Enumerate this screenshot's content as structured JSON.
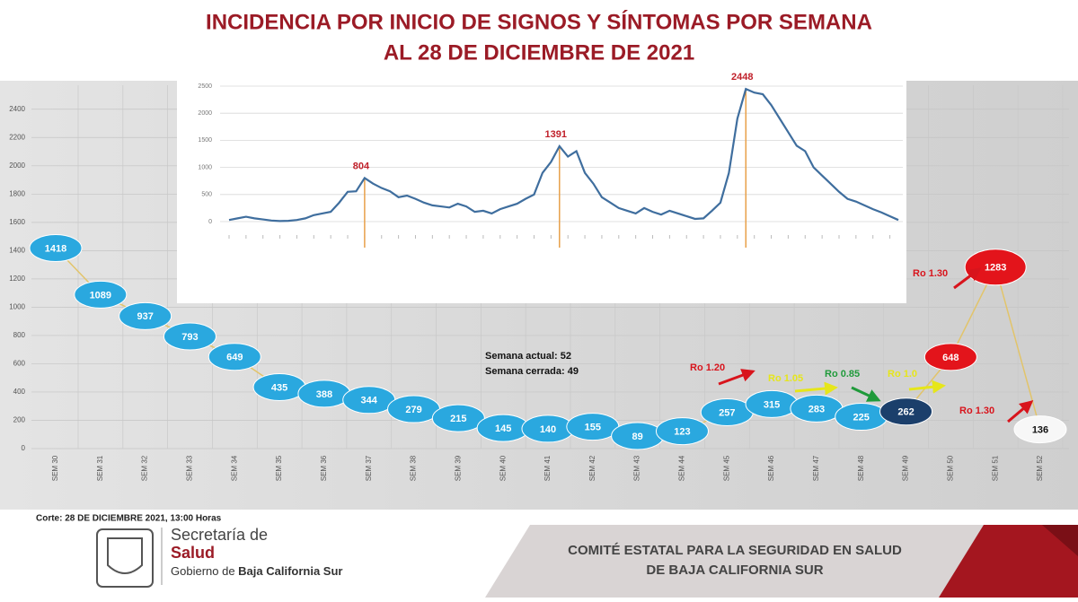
{
  "header": {
    "title": [
      "INCIDENCIA POR INICIO DE SIGNOS Y SÍNTOMAS POR SEMANA",
      "AL 28 DE DICIEMBRE DE 2021"
    ]
  },
  "chart_data": [
    {
      "type": "line",
      "categories": [
        "SEM 30",
        "SEM 31",
        "SEM 32",
        "SEM 33",
        "SEM 34",
        "SEM 35",
        "SEM 36",
        "SEM 37",
        "SEM 38",
        "SEM 39",
        "SEM 40",
        "SEM 41",
        "SEM 42",
        "SEM 43",
        "SEM 44",
        "SEM 45",
        "SEM 46",
        "SEM 47",
        "SEM 48",
        "SEM 49",
        "SEM 50",
        "SEM 51",
        "SEM 52"
      ],
      "values": [
        1418,
        1089,
        937,
        793,
        649,
        435,
        388,
        344,
        279,
        215,
        145,
        140,
        155,
        89,
        123,
        257,
        315,
        283,
        225,
        262,
        648,
        1283,
        136
      ],
      "point_colors": [
        "#2aa8df",
        "#2aa8df",
        "#2aa8df",
        "#2aa8df",
        "#2aa8df",
        "#2aa8df",
        "#2aa8df",
        "#2aa8df",
        "#2aa8df",
        "#2aa8df",
        "#2aa8df",
        "#2aa8df",
        "#2aa8df",
        "#2aa8df",
        "#2aa8df",
        "#2aa8df",
        "#2aa8df",
        "#2aa8df",
        "#2aa8df",
        "#1b3f6b",
        "#e3141b",
        "#e3141b",
        "#f7f7f7"
      ],
      "color": "#e2c46a",
      "ylim": [
        0,
        2500
      ],
      "yticks": [
        0,
        200,
        400,
        600,
        800,
        1000,
        1200,
        1400,
        1600,
        1800,
        2000,
        2200,
        2400
      ],
      "grid": true,
      "annotations": [
        {
          "text": "Semana actual: 52",
          "color": "#111111"
        },
        {
          "text": "Semana cerrada: 49",
          "color": "#111111"
        },
        {
          "text": "Ro 1.20",
          "color": "#d8141c"
        },
        {
          "text": "Ro 1.05",
          "color": "#e6e61a"
        },
        {
          "text": "Ro 0.85",
          "color": "#1f9a3a"
        },
        {
          "text": "Ro 1.0",
          "color": "#e6e61a"
        },
        {
          "text": "Ro 1.30",
          "color": "#d8141c"
        },
        {
          "text": "Ro 1.30",
          "color": "#d8141c"
        }
      ]
    },
    {
      "type": "line",
      "values": [
        30,
        60,
        90,
        60,
        40,
        20,
        10,
        15,
        30,
        60,
        120,
        150,
        180,
        350,
        550,
        560,
        804,
        700,
        620,
        560,
        450,
        480,
        420,
        350,
        300,
        280,
        260,
        330,
        280,
        180,
        200,
        150,
        230,
        280,
        330,
        420,
        500,
        900,
        1100,
        1391,
        1200,
        1300,
        900,
        700,
        450,
        350,
        250,
        200,
        150,
        250,
        180,
        130,
        200,
        150,
        100,
        50,
        60,
        200,
        350,
        900,
        1900,
        2448,
        2380,
        2350,
        2150,
        1900,
        1650,
        1400,
        1300,
        1000,
        850,
        700,
        550,
        420,
        370,
        300,
        230,
        170,
        100,
        30
      ],
      "value_labels": [
        null,
        null,
        null,
        null,
        null,
        null,
        null,
        null,
        null,
        null,
        null,
        null,
        null,
        null,
        null,
        null,
        "804",
        null,
        null,
        null,
        null,
        null,
        null,
        null,
        null,
        null,
        null,
        null,
        null,
        null,
        null,
        null,
        null,
        null,
        null,
        null,
        null,
        null,
        null,
        "1391",
        null,
        null,
        null,
        null,
        null,
        null,
        null,
        null,
        null,
        null,
        null,
        null,
        null,
        null,
        null,
        null,
        null,
        null,
        null,
        null,
        null,
        "2448",
        null,
        null,
        null,
        null,
        null,
        null,
        null,
        null,
        null,
        null,
        null,
        null,
        null,
        null,
        null,
        null,
        null,
        null
      ],
      "color": "#3f6e9e",
      "ylim": [
        0,
        2500
      ],
      "yticks": [
        0,
        500,
        1000,
        1500,
        2000,
        2500
      ],
      "grid": true
    }
  ],
  "footer": {
    "cut": "Corte: 28 DE DICIEMBRE 2021, 13:00 Horas",
    "org_line1": "Secretaría de",
    "org_line2": "Salud",
    "gov_prefix": "Gobierno de ",
    "gov_state": "Baja California Sur",
    "committee": [
      "COMITÉ ESTATAL PARA LA SEGURIDAD EN SALUD",
      "DE BAJA CALIFORNIA SUR"
    ]
  }
}
